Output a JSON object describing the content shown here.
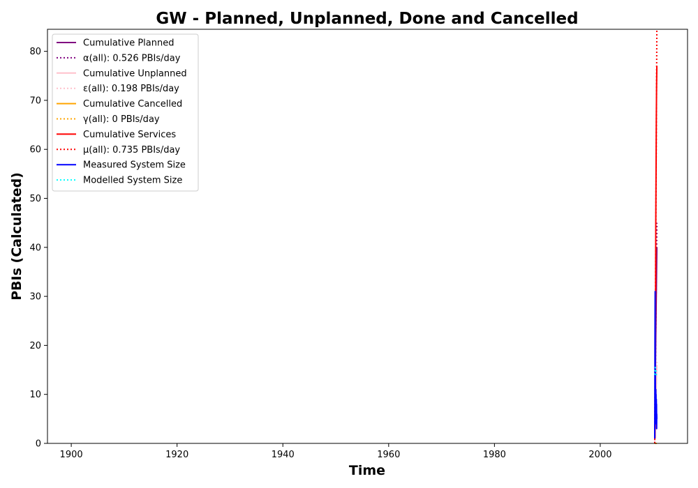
{
  "chart_data": {
    "type": "line",
    "title": "GW - Planned, Unplanned, Done  and Cancelled",
    "xlabel": "Time",
    "ylabel": "PBIs (Calculated)",
    "xlim": [
      1895.5,
      2016.5
    ],
    "ylim": [
      0,
      84.5
    ],
    "xticks": [
      1900,
      1920,
      1940,
      1960,
      1980,
      2000
    ],
    "yticks": [
      0,
      10,
      20,
      30,
      40,
      50,
      60,
      70,
      80
    ],
    "grid": false,
    "legend_position": "top-left",
    "series": [
      {
        "name": "Cumulative Planned",
        "color": "#800080",
        "style": "solid",
        "x": [
          2010.3,
          2010.5,
          2010.7
        ],
        "y": [
          1,
          22,
          40
        ]
      },
      {
        "name": "α(all): 0.526 PBIs/day",
        "color": "#800080",
        "style": "dotted",
        "x": [
          2010.3,
          2010.7
        ],
        "y": [
          0,
          45
        ]
      },
      {
        "name": "Cumulative Unplanned",
        "color": "#ffc0cb",
        "style": "solid",
        "x": [
          2010.3,
          2010.5,
          2010.7
        ],
        "y": [
          0,
          8,
          16
        ]
      },
      {
        "name": "ε(all): 0.198 PBIs/day",
        "color": "#ffc0cb",
        "style": "dotted",
        "x": [
          2010.3,
          2010.7
        ],
        "y": [
          0,
          17
        ]
      },
      {
        "name": "Cumulative Cancelled",
        "color": "#ffa500",
        "style": "solid",
        "x": [
          2010.3,
          2010.7
        ],
        "y": [
          0,
          0
        ]
      },
      {
        "name": "γ(all): 0 PBIs/day",
        "color": "#ffa500",
        "style": "dotted",
        "x": [
          2010.3,
          2010.7
        ],
        "y": [
          0,
          0
        ]
      },
      {
        "name": "Cumulative Services",
        "color": "#ff0000",
        "style": "solid",
        "x": [
          2010.35,
          2010.4,
          2010.45,
          2010.5,
          2010.55,
          2010.6,
          2010.65,
          2010.7
        ],
        "y": [
          1,
          10,
          28,
          45,
          55,
          66,
          73,
          77
        ]
      },
      {
        "name": "μ(all): 0.735 PBIs/day",
        "color": "#ff0000",
        "style": "dotted",
        "x": [
          2010.3,
          2010.7
        ],
        "y": [
          0,
          84.5
        ]
      },
      {
        "name": "Measured System Size",
        "color": "#0000ff",
        "style": "solid",
        "x": [
          2010.3,
          2010.32,
          2010.34,
          2010.36,
          2010.38,
          2010.4,
          2010.42,
          2010.44,
          2010.46,
          2010.48,
          2010.5,
          2010.52,
          2010.54,
          2010.56,
          2010.58,
          2010.6,
          2010.62,
          2010.64,
          2010.66,
          2010.68,
          2010.7
        ],
        "y": [
          1,
          9,
          20,
          26,
          31,
          18,
          12,
          8,
          4,
          9,
          11,
          6,
          10,
          7,
          5,
          9,
          6,
          8,
          3,
          6,
          5
        ]
      },
      {
        "name": "Modelled System Size",
        "color": "#00ffff",
        "style": "dotted",
        "x": [
          2010.3,
          2010.4,
          2010.5,
          2010.6,
          2010.7
        ],
        "y": [
          14,
          15.5,
          15,
          14,
          13.5
        ]
      }
    ]
  }
}
